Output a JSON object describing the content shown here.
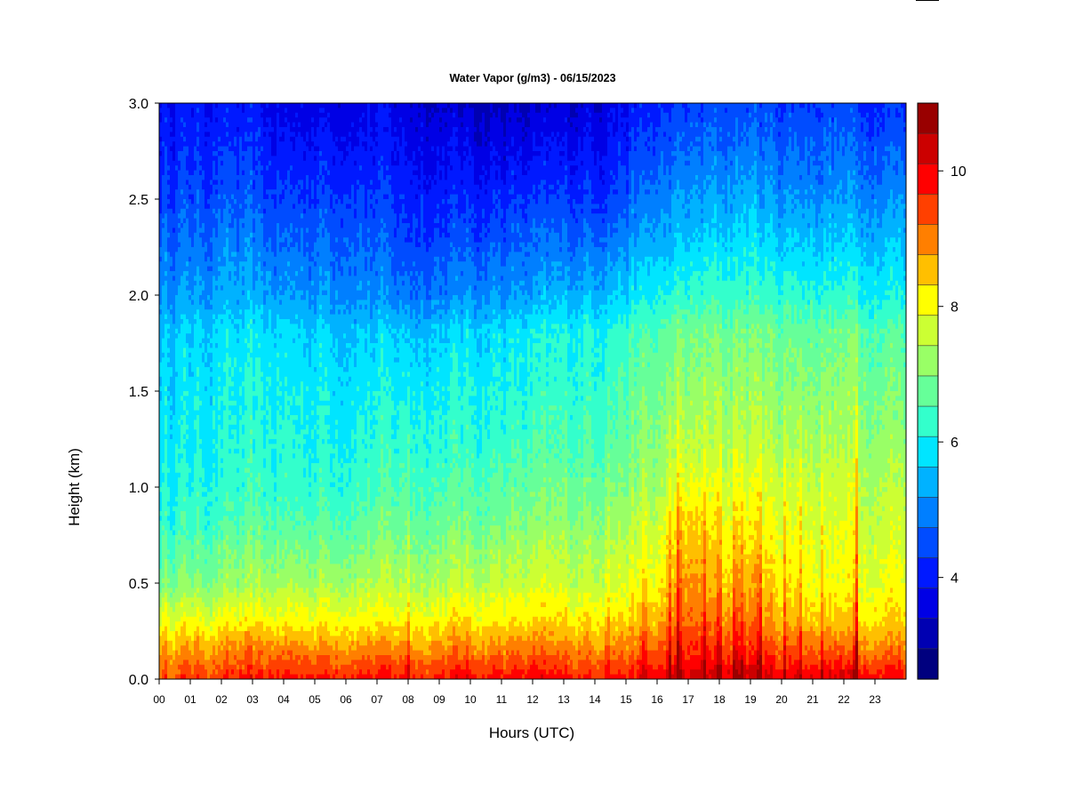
{
  "chart_data": {
    "type": "heatmap",
    "title": "Water Vapor (g/m3) - 06/15/2023",
    "xlabel": "Hours (UTC)",
    "ylabel": "Height (km)",
    "x_ticks": [
      "00",
      "01",
      "02",
      "03",
      "04",
      "05",
      "06",
      "07",
      "08",
      "09",
      "10",
      "11",
      "12",
      "13",
      "14",
      "15",
      "16",
      "17",
      "18",
      "19",
      "20",
      "21",
      "22",
      "23"
    ],
    "y_ticks": [
      "0.0",
      "0.5",
      "1.0",
      "1.5",
      "2.0",
      "2.5",
      "3.0"
    ],
    "xlim": [
      0,
      24
    ],
    "ylim": [
      0,
      3.0
    ],
    "colorbar": {
      "ticks": [
        "4",
        "6",
        "8",
        "10"
      ],
      "tick_values": [
        4,
        6,
        8,
        10
      ],
      "range": [
        2.5,
        11.0
      ],
      "levels": 17,
      "colors": [
        "#00007f",
        "#0000b2",
        "#0000e5",
        "#0019ff",
        "#004cff",
        "#007fff",
        "#00b2ff",
        "#00e5ff",
        "#33ffcc",
        "#66ff99",
        "#99ff66",
        "#ccff33",
        "#ffff00",
        "#ffbf00",
        "#ff7f00",
        "#ff4000",
        "#ff0000",
        "#cc0000",
        "#990000"
      ]
    },
    "profile": {
      "heights_km": [
        0.0,
        0.05,
        0.15,
        0.3,
        0.5,
        0.8,
        1.0,
        1.2,
        1.5,
        1.8,
        2.0,
        2.3,
        2.6,
        3.0
      ],
      "times_h": [
        0,
        2,
        4,
        6,
        8,
        10,
        12,
        14,
        16,
        17,
        18,
        19,
        20,
        22,
        24
      ],
      "values_gm3": [
        [
          9.4,
          9.2,
          8.8,
          8.0,
          7.0,
          6.3,
          6.1,
          6.0,
          5.8,
          5.6,
          5.2,
          4.7,
          4.3,
          3.9
        ],
        [
          9.6,
          9.3,
          8.9,
          8.0,
          7.1,
          6.5,
          6.2,
          6.1,
          6.0,
          5.8,
          5.3,
          4.9,
          4.4,
          4.0
        ],
        [
          9.8,
          9.5,
          9.0,
          8.1,
          7.3,
          6.6,
          6.3,
          6.2,
          6.0,
          5.8,
          5.2,
          4.7,
          4.2,
          3.6
        ],
        [
          9.9,
          9.6,
          9.0,
          8.2,
          7.4,
          6.7,
          6.4,
          6.2,
          6.0,
          5.7,
          5.2,
          4.8,
          4.3,
          3.7
        ],
        [
          9.8,
          9.5,
          8.9,
          8.1,
          7.4,
          6.8,
          6.5,
          6.3,
          6.0,
          5.6,
          4.9,
          4.4,
          4.0,
          3.6
        ],
        [
          9.9,
          9.6,
          9.0,
          8.3,
          7.5,
          6.9,
          6.6,
          6.3,
          6.1,
          5.8,
          5.1,
          4.5,
          4.0,
          3.3
        ],
        [
          9.9,
          9.6,
          9.0,
          8.2,
          7.6,
          7.0,
          6.7,
          6.4,
          6.1,
          5.9,
          5.2,
          4.6,
          4.0,
          3.2
        ],
        [
          9.8,
          9.5,
          9.0,
          8.3,
          7.7,
          7.2,
          6.9,
          6.6,
          6.4,
          6.2,
          5.6,
          4.8,
          4.2,
          3.6
        ],
        [
          9.9,
          9.7,
          9.2,
          8.5,
          8.0,
          7.6,
          7.2,
          7.0,
          6.8,
          6.5,
          6.0,
          5.3,
          4.7,
          4.1
        ],
        [
          10.2,
          10.0,
          9.6,
          9.2,
          8.8,
          8.4,
          7.9,
          7.5,
          7.1,
          6.8,
          6.2,
          5.5,
          5.0,
          4.3
        ],
        [
          10.1,
          9.9,
          9.5,
          8.9,
          8.4,
          8.0,
          7.7,
          7.4,
          7.1,
          6.8,
          6.3,
          5.7,
          5.1,
          4.4
        ],
        [
          10.3,
          10.1,
          9.6,
          9.1,
          8.6,
          8.1,
          7.8,
          7.5,
          7.2,
          6.9,
          6.4,
          5.8,
          5.2,
          4.5
        ],
        [
          10.0,
          9.8,
          9.3,
          8.6,
          8.2,
          7.9,
          7.7,
          7.4,
          7.1,
          6.8,
          6.3,
          5.6,
          5.0,
          4.4
        ],
        [
          10.1,
          9.9,
          9.2,
          8.4,
          8.0,
          7.8,
          7.6,
          7.4,
          7.1,
          6.8,
          6.2,
          5.6,
          5.0,
          4.4
        ],
        [
          9.9,
          9.6,
          9.0,
          8.4,
          8.0,
          7.7,
          7.5,
          7.2,
          6.9,
          6.6,
          6.1,
          5.5,
          4.9,
          4.2
        ]
      ]
    },
    "spikes": [
      {
        "time_h": 8.0,
        "amp": 0.8
      },
      {
        "time_h": 14.4,
        "amp": 0.9
      },
      {
        "time_h": 15.6,
        "amp": 0.9
      },
      {
        "time_h": 16.4,
        "amp": 1.4
      },
      {
        "time_h": 16.7,
        "amp": 1.6
      },
      {
        "time_h": 17.5,
        "amp": 1.1
      },
      {
        "time_h": 18.0,
        "amp": 1.5
      },
      {
        "time_h": 18.5,
        "amp": 1.2
      },
      {
        "time_h": 18.7,
        "amp": 1.0
      },
      {
        "time_h": 19.3,
        "amp": 1.8
      },
      {
        "time_h": 20.1,
        "amp": 1.0
      },
      {
        "time_h": 20.6,
        "amp": 1.1
      },
      {
        "time_h": 21.3,
        "amp": 0.9
      },
      {
        "time_h": 22.4,
        "amp": 2.0
      }
    ]
  }
}
